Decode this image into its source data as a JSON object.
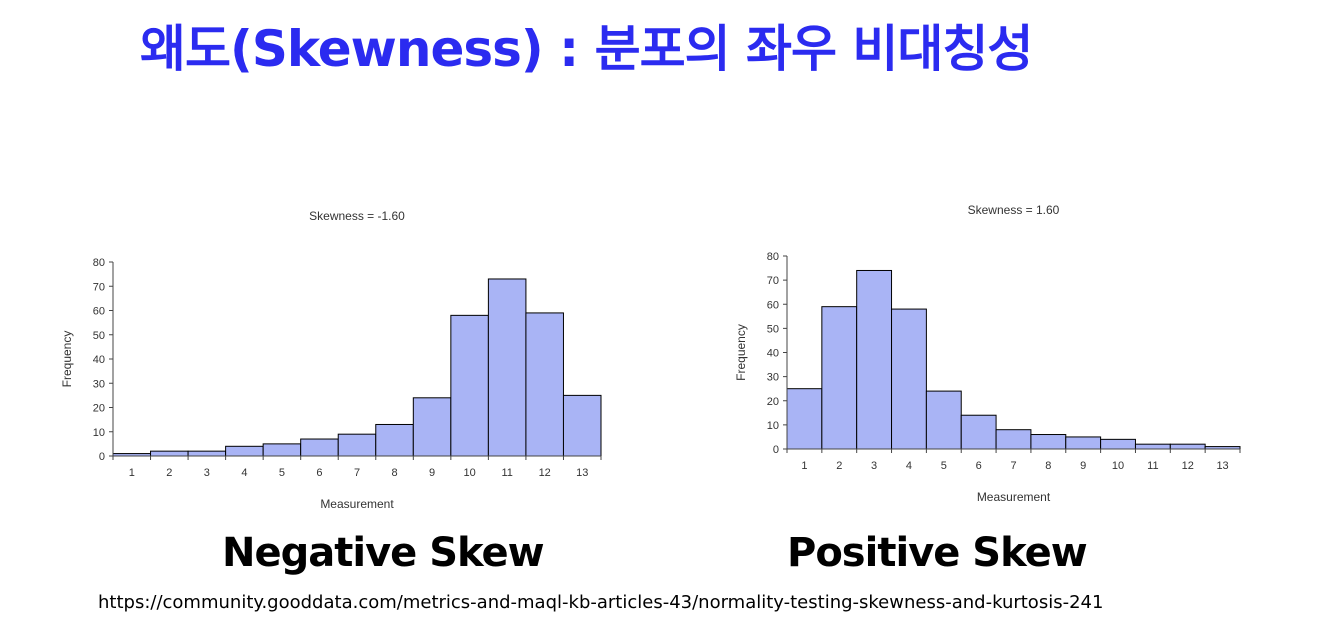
{
  "slide": {
    "title": "왜도(Skewness) : 분포의 좌우 비대칭성",
    "source_url": "https://community.gooddata.com/metrics-and-maql-kb-articles-43/normality-testing-skewness-and-kurtosis-241"
  },
  "captions": {
    "left": "Negative Skew",
    "right": "Positive Skew"
  },
  "colors": {
    "title": "#2b2bf0",
    "bar_fill": "#a9b4f5",
    "bar_stroke": "#000000"
  },
  "chart_data": [
    {
      "type": "bar",
      "title": "Skewness = -1.60",
      "xlabel": "Measurement",
      "ylabel": "Frequency",
      "categories": [
        "1",
        "2",
        "3",
        "4",
        "5",
        "6",
        "7",
        "8",
        "9",
        "10",
        "11",
        "12",
        "13"
      ],
      "values": [
        1,
        2,
        2,
        4,
        5,
        7,
        9,
        13,
        24,
        58,
        73,
        59,
        25
      ],
      "ylim": [
        0,
        80
      ],
      "yticks": [
        "0",
        "10",
        "20",
        "30",
        "40",
        "50",
        "60",
        "70",
        "80"
      ],
      "grid": false,
      "legend": "none"
    },
    {
      "type": "bar",
      "title": "Skewness = 1.60",
      "xlabel": "Measurement",
      "ylabel": "Frequency",
      "categories": [
        "1",
        "2",
        "3",
        "4",
        "5",
        "6",
        "7",
        "8",
        "9",
        "10",
        "11",
        "12",
        "13"
      ],
      "values": [
        25,
        59,
        74,
        58,
        24,
        14,
        8,
        6,
        5,
        4,
        2,
        2,
        1
      ],
      "ylim": [
        0,
        80
      ],
      "yticks": [
        "0",
        "10",
        "20",
        "30",
        "40",
        "50",
        "60",
        "70",
        "80"
      ],
      "grid": false,
      "legend": "none"
    }
  ]
}
